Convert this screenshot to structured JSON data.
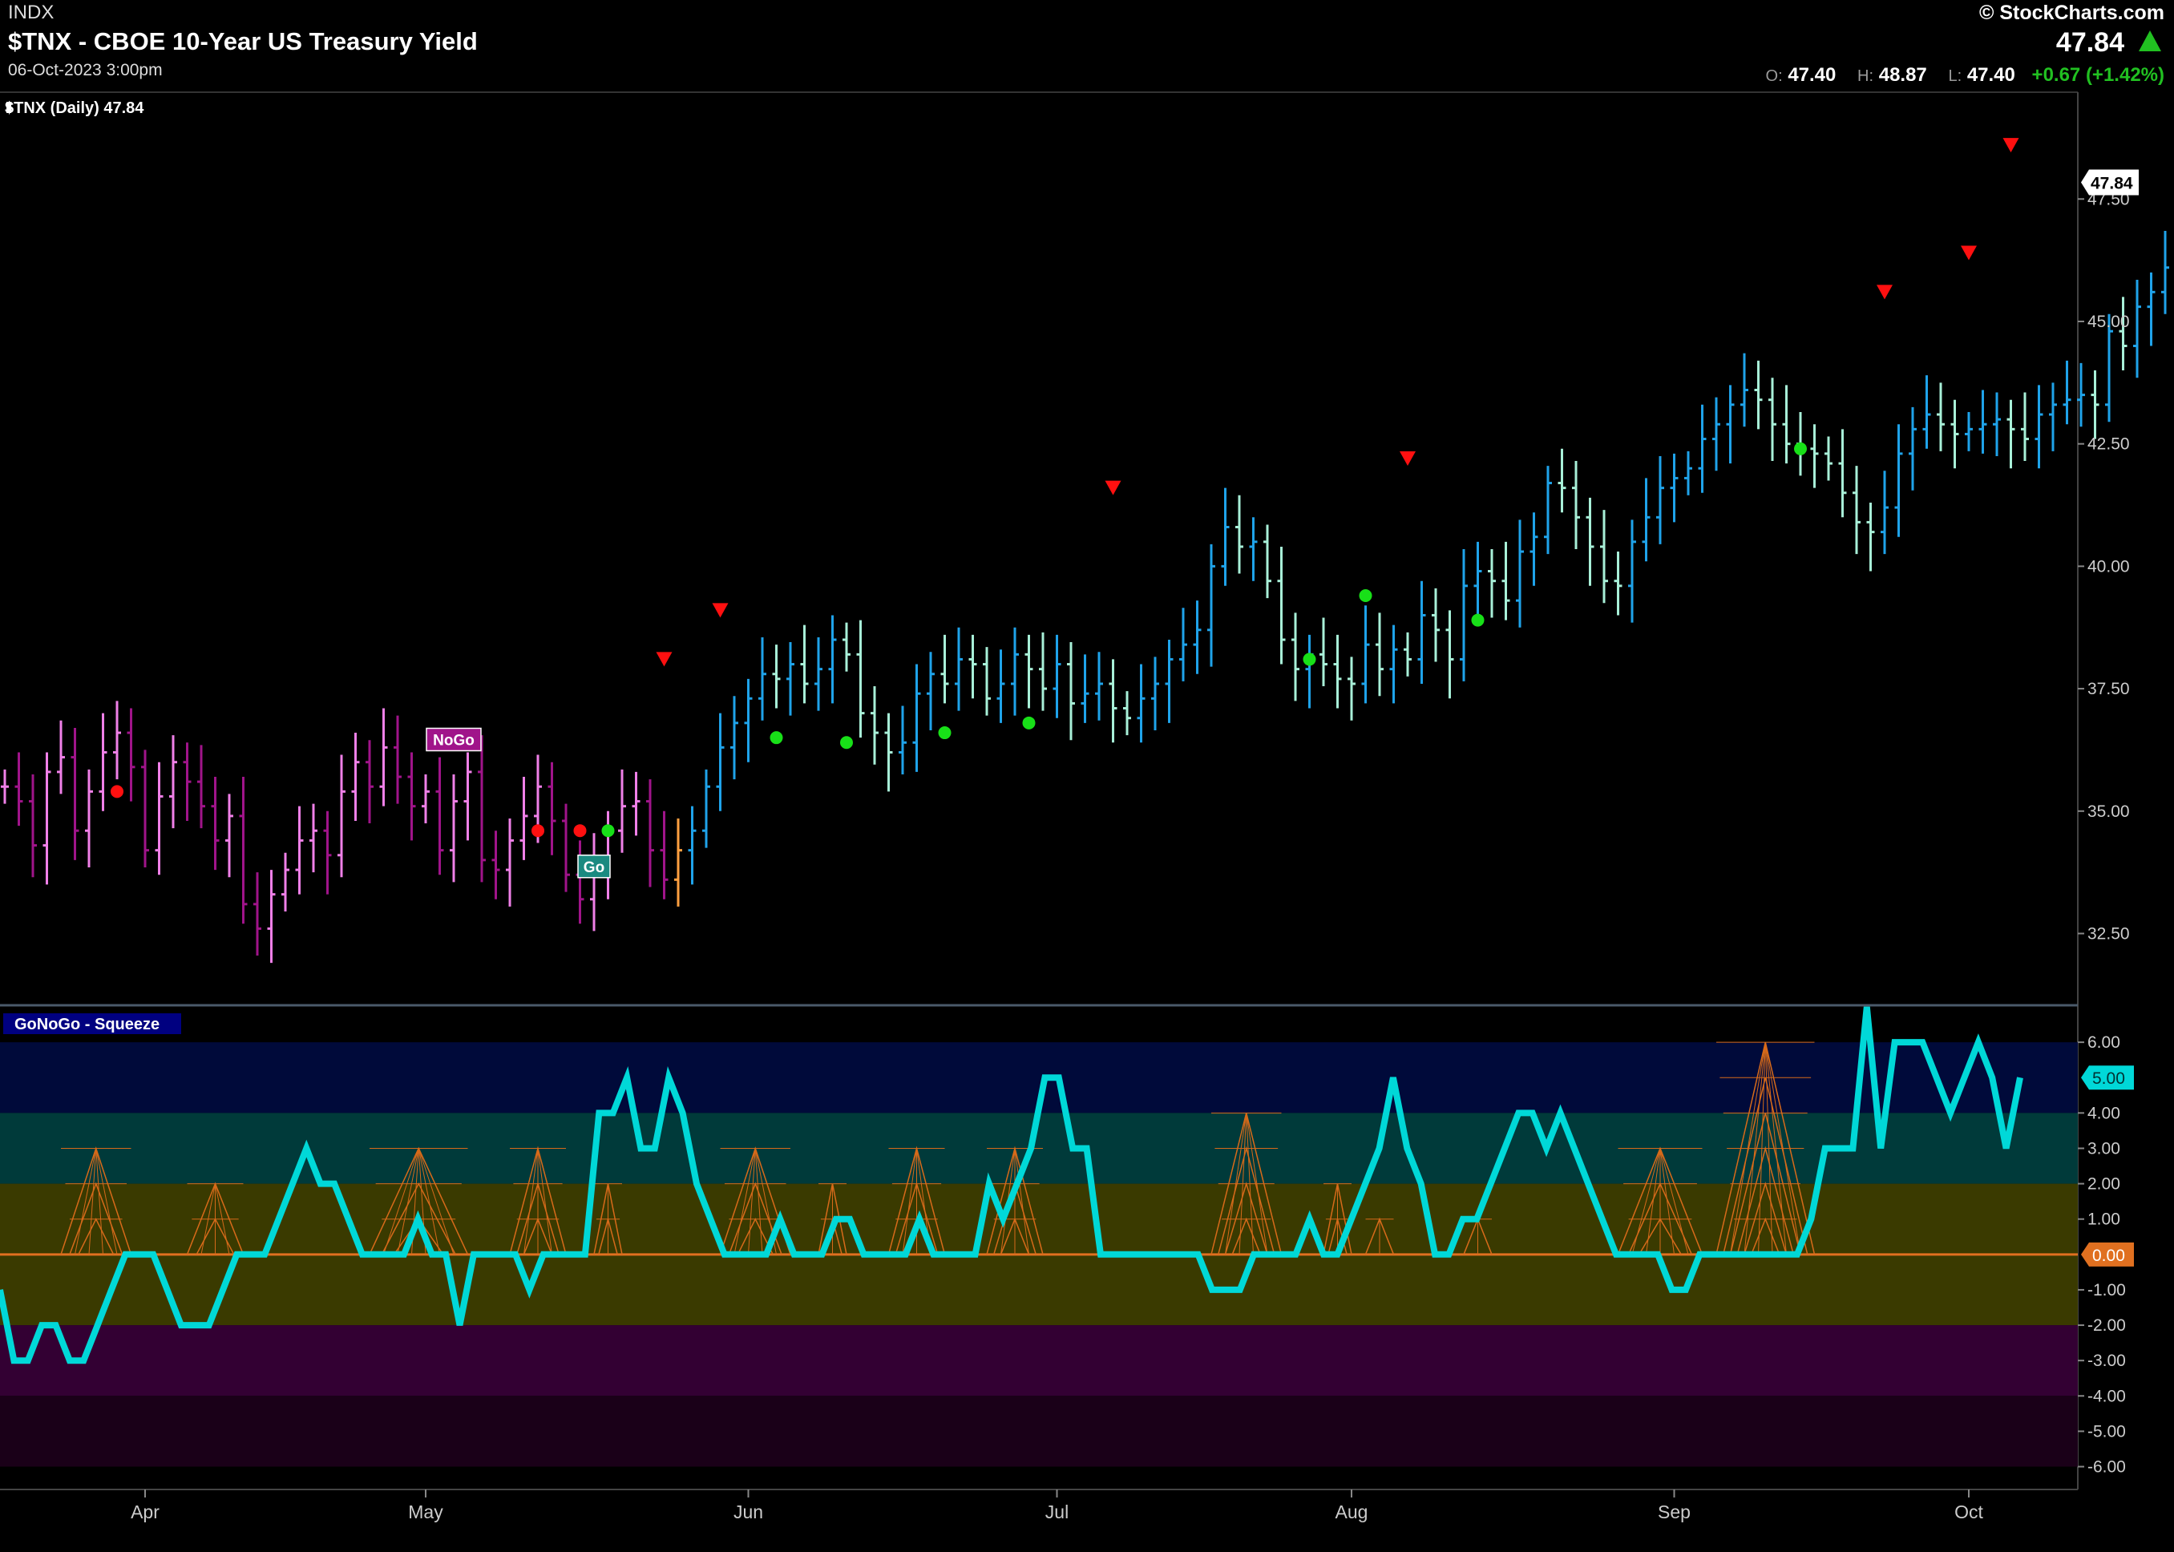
{
  "header": {
    "exchange": "INDX",
    "title": "$TNX - CBOE 10-Year US Treasury Yield",
    "datetime": "06-Oct-2023 3:00pm",
    "brand": "© StockCharts.com",
    "last": "47.84",
    "open_label": "O:",
    "open": "47.40",
    "high_label": "H:",
    "high": "48.87",
    "low_label": "L:",
    "low": "47.40",
    "change": "+0.67 (+1.42%)"
  },
  "colors": {
    "go_strong": "#1fa3ea",
    "go_weak": "#a8f0d8",
    "nogo_strong": "#a0148a",
    "nogo_weak": "#f080e8",
    "neutral": "#ffa040",
    "oscillator": "#00d8d8",
    "squeeze": "#d66a1a",
    "zero_line": "#e07020"
  },
  "chart_data": [
    {
      "type": "bar",
      "subtype": "ohlc",
      "legend": "$TNX (Daily) 47.84",
      "last_value_label": "47.84",
      "y_ticks": [
        "32.50",
        "35.00",
        "37.50",
        "40.00",
        "42.50",
        "45.00",
        "47.50"
      ],
      "ylim": [
        31.1,
        49.6
      ],
      "x_ticks": [
        "Apr",
        "May",
        "Jun",
        "Jul",
        "Aug",
        "Sep",
        "Oct"
      ],
      "date_range": [
        "2023-03-20",
        "2023-10-06"
      ],
      "annotations": [
        {
          "text": "NoGo",
          "type": "label",
          "date": "2023-05-03",
          "value": 36.2,
          "color": "#a0148a"
        },
        {
          "text": "Go",
          "type": "label",
          "date": "2023-05-17",
          "value": 34.1,
          "color": "#1a8a80"
        }
      ],
      "bars_by_period": [
        {
          "from": "2023-03-20",
          "to": "2023-05-16",
          "trend": "nogo",
          "closes": [
            35.5,
            35.2,
            34.3,
            35.8,
            36.1,
            34.6,
            35.4,
            36.2,
            36.6,
            35.9,
            34.2,
            35.3,
            36.0,
            35.6,
            35.1,
            34.4,
            34.9,
            33.1,
            32.6,
            33.3,
            33.8,
            34.4,
            34.6,
            34.1,
            35.4,
            36.0,
            35.5,
            36.3,
            35.7,
            35.1,
            35.4,
            34.2,
            35.2,
            35.8,
            34.0,
            33.8,
            34.4,
            34.9,
            35.5,
            34.8,
            33.7,
            33.2,
            34.0,
            34.6,
            35.1,
            35.2,
            34.2,
            33.6,
            34.2
          ]
        },
        {
          "from": "2023-05-17",
          "to": "2023-10-06",
          "trend": "go",
          "closes": [
            34.6,
            35.5,
            36.3,
            36.8,
            37.3,
            37.8,
            37.7,
            38.0,
            37.6,
            37.9,
            38.5,
            38.2,
            37.0,
            36.6,
            36.2,
            36.4,
            37.4,
            37.8,
            37.6,
            38.1,
            38.0,
            37.3,
            37.6,
            38.2,
            37.9,
            37.5,
            38.0,
            37.2,
            37.4,
            37.6,
            37.1,
            36.9,
            37.3,
            37.6,
            38.1,
            38.4,
            38.7,
            40.0,
            40.8,
            40.4,
            40.5,
            39.7,
            38.5,
            37.9,
            38.2,
            38.0,
            37.7,
            37.6,
            38.4,
            37.9,
            38.3,
            38.1,
            39.0,
            38.7,
            38.1,
            39.6,
            39.9,
            39.7,
            39.3,
            40.3,
            40.6,
            41.7,
            41.6,
            41.0,
            40.4,
            39.7,
            39.6,
            40.5,
            41.0,
            41.6,
            41.8,
            42.0,
            42.6,
            42.9,
            43.3,
            43.6,
            43.4,
            42.9,
            42.5,
            42.4,
            42.3,
            42.1,
            41.5,
            40.9,
            40.7,
            41.2,
            42.3,
            42.8,
            43.1,
            42.9,
            42.7,
            42.8,
            42.9,
            43.0,
            42.8,
            42.6,
            43.1,
            43.3,
            43.4,
            43.5,
            43.3,
            44.8,
            44.5,
            45.3,
            45.6,
            46.1,
            46.4,
            45.8,
            46.6,
            47.2,
            47.4,
            47.5,
            47.3,
            47.84
          ]
        }
      ],
      "signals": [
        {
          "type": "nogo-dot",
          "date": "2023-03-30",
          "value": 35.4,
          "color": "#ff1010"
        },
        {
          "type": "nogo-dot",
          "date": "2023-05-11",
          "value": 34.6,
          "color": "#ff1010"
        },
        {
          "type": "nogo-dot",
          "date": "2023-05-16",
          "value": 34.6,
          "color": "#ff1010"
        },
        {
          "type": "go-dot",
          "date": "2023-05-18",
          "value": 34.6,
          "color": "#18e018"
        },
        {
          "type": "go-dot",
          "date": "2023-06-05",
          "value": 36.5,
          "color": "#18e018"
        },
        {
          "type": "go-dot",
          "date": "2023-06-12",
          "value": 36.4,
          "color": "#18e018"
        },
        {
          "type": "go-dot",
          "date": "2023-06-21",
          "value": 36.6,
          "color": "#18e018"
        },
        {
          "type": "go-dot",
          "date": "2023-06-29",
          "value": 36.8,
          "color": "#18e018"
        },
        {
          "type": "go-dot",
          "date": "2023-07-27",
          "value": 38.1,
          "color": "#18e018"
        },
        {
          "type": "go-dot",
          "date": "2023-08-02",
          "value": 39.4,
          "color": "#18e018"
        },
        {
          "type": "go-dot",
          "date": "2023-08-14",
          "value": 38.9,
          "color": "#18e018"
        },
        {
          "type": "go-dot",
          "date": "2023-09-14",
          "value": 42.4,
          "color": "#18e018"
        },
        {
          "type": "countertrend-triangle",
          "date": "2023-05-24",
          "value": 38.1,
          "color": "#ff1010"
        },
        {
          "type": "countertrend-triangle",
          "date": "2023-05-30",
          "value": 39.1,
          "color": "#ff1010"
        },
        {
          "type": "countertrend-triangle",
          "date": "2023-07-07",
          "value": 41.6,
          "color": "#ff1010"
        },
        {
          "type": "countertrend-triangle",
          "date": "2023-08-07",
          "value": 42.2,
          "color": "#ff1010"
        },
        {
          "type": "countertrend-triangle",
          "date": "2023-09-22",
          "value": 45.6,
          "color": "#ff1010"
        },
        {
          "type": "countertrend-triangle",
          "date": "2023-10-02",
          "value": 46.4,
          "color": "#ff1010"
        },
        {
          "type": "countertrend-triangle",
          "date": "2023-10-05",
          "value": 48.6,
          "color": "#ff1010"
        }
      ]
    },
    {
      "type": "line",
      "legend": "GoNoGo - Squeeze",
      "last_value_label": "5.00",
      "zero_label": "0.00",
      "y_ticks": [
        "6.00",
        "4.00",
        "3.00",
        "2.00",
        "1.00",
        "-1.00",
        "-2.00",
        "-3.00",
        "-4.00",
        "-5.00",
        "-6.00"
      ],
      "ylim": [
        -6.6,
        7.0
      ],
      "series": [
        {
          "values": [
            -1,
            -3,
            -3,
            -2,
            -2,
            -3,
            -3,
            -2,
            -1,
            0,
            0,
            0,
            -1,
            -2,
            -2,
            -2,
            -1,
            0,
            0,
            0,
            1,
            2,
            3,
            2,
            2,
            1,
            0,
            0,
            0,
            0,
            1,
            0,
            0,
            -2,
            0,
            0,
            0,
            0,
            -1,
            0,
            0,
            0,
            0,
            4,
            4,
            5,
            3,
            3,
            5,
            4,
            2,
            1,
            0,
            0,
            0,
            0,
            1,
            0,
            0,
            0,
            1,
            1,
            0,
            0,
            0,
            0,
            1,
            0,
            0,
            0,
            0,
            2,
            1,
            2,
            3,
            5,
            5,
            3,
            3,
            0,
            0,
            0,
            0,
            0,
            0,
            0,
            0,
            -1,
            -1,
            -1,
            0,
            0,
            0,
            0,
            1,
            0,
            0,
            1,
            2,
            3,
            5,
            3,
            2,
            0,
            0,
            1,
            1,
            2,
            3,
            4,
            4,
            3,
            4,
            3,
            2,
            1,
            0,
            0,
            0,
            0,
            -1,
            -1,
            0,
            0,
            0,
            0,
            0,
            0,
            0,
            0,
            1,
            3,
            3,
            3,
            7,
            3,
            6,
            6,
            6,
            5,
            4,
            5,
            6,
            5,
            3,
            5
          ]
        }
      ],
      "squeeze_markers": [
        {
          "from": "2023-03-24",
          "to": "2023-03-31",
          "level": 3
        },
        {
          "from": "2023-04-06",
          "to": "2023-04-12",
          "level": 2
        },
        {
          "from": "2023-04-25",
          "to": "2023-05-04",
          "level": 3
        },
        {
          "from": "2023-05-09",
          "to": "2023-05-15",
          "level": 3
        },
        {
          "from": "2023-05-17",
          "to": "2023-05-19",
          "level": 2
        },
        {
          "from": "2023-05-30",
          "to": "2023-06-06",
          "level": 3
        },
        {
          "from": "2023-06-08",
          "to": "2023-06-12",
          "level": 2
        },
        {
          "from": "2023-06-15",
          "to": "2023-06-21",
          "level": 3
        },
        {
          "from": "2023-06-26",
          "to": "2023-06-30",
          "level": 3
        },
        {
          "from": "2023-07-18",
          "to": "2023-07-25",
          "level": 4
        },
        {
          "from": "2023-07-28",
          "to": "2023-08-01",
          "level": 2
        },
        {
          "from": "2023-08-02",
          "to": "2023-08-04",
          "level": 1
        },
        {
          "from": "2023-08-11",
          "to": "2023-08-15",
          "level": 1
        },
        {
          "from": "2023-08-28",
          "to": "2023-09-05",
          "level": 3
        },
        {
          "from": "2023-09-06",
          "to": "2023-09-15",
          "level": 6
        }
      ]
    }
  ]
}
